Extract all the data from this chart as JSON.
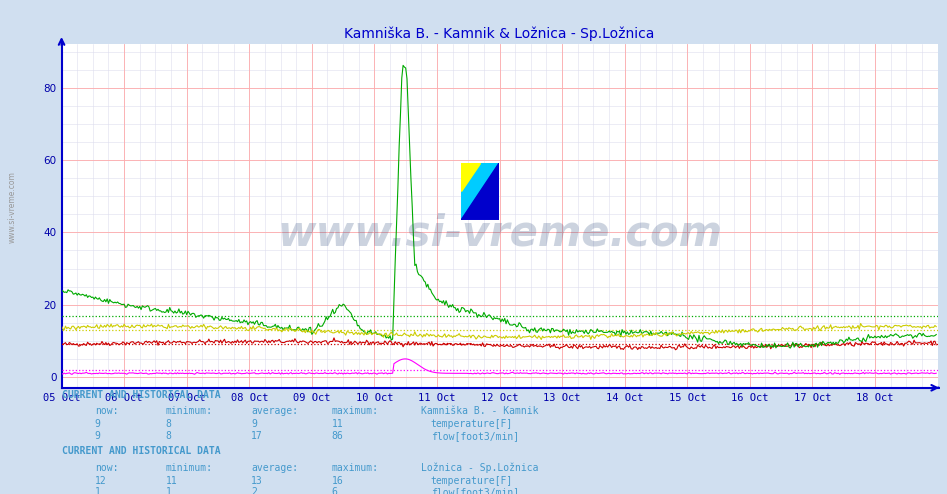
{
  "title": "Kamniška B. - Kamnik & Ložnica - Sp.Ložnica",
  "title_color": "#0000cc",
  "bg_color": "#d0dff0",
  "plot_bg_color": "#ffffff",
  "grid_color_major": "#ffaaaa",
  "grid_color_minor": "#ddddee",
  "x_labels": [
    "05 Oct",
    "06 Oct",
    "07 Oct",
    "08 Oct",
    "09 Oct",
    "10 Oct",
    "11 Oct",
    "12 Oct",
    "13 Oct",
    "14 Oct",
    "15 Oct",
    "16 Oct",
    "17 Oct",
    "18 Oct"
  ],
  "y_ticks": [
    0,
    20,
    40,
    60,
    80
  ],
  "y_max": 92,
  "y_min": -3,
  "watermark": "www.si-vreme.com",
  "series_kamnik_temp_color": "#cc0000",
  "series_kamnik_flow_color": "#00aa00",
  "series_loznica_temp_color": "#cccc00",
  "series_loznica_flow_color": "#ff00ff",
  "kamnik_flow_avg": 17,
  "loznica_temp_avg": 13,
  "kamnik_temp_avg": 9,
  "loznica_flow_avg": 2,
  "info_text_color": "#4499cc",
  "sidebar_text": "www.si-vreme.com",
  "logo_yellow": "#ffff00",
  "logo_cyan": "#00ccff",
  "logo_blue": "#0000cc"
}
